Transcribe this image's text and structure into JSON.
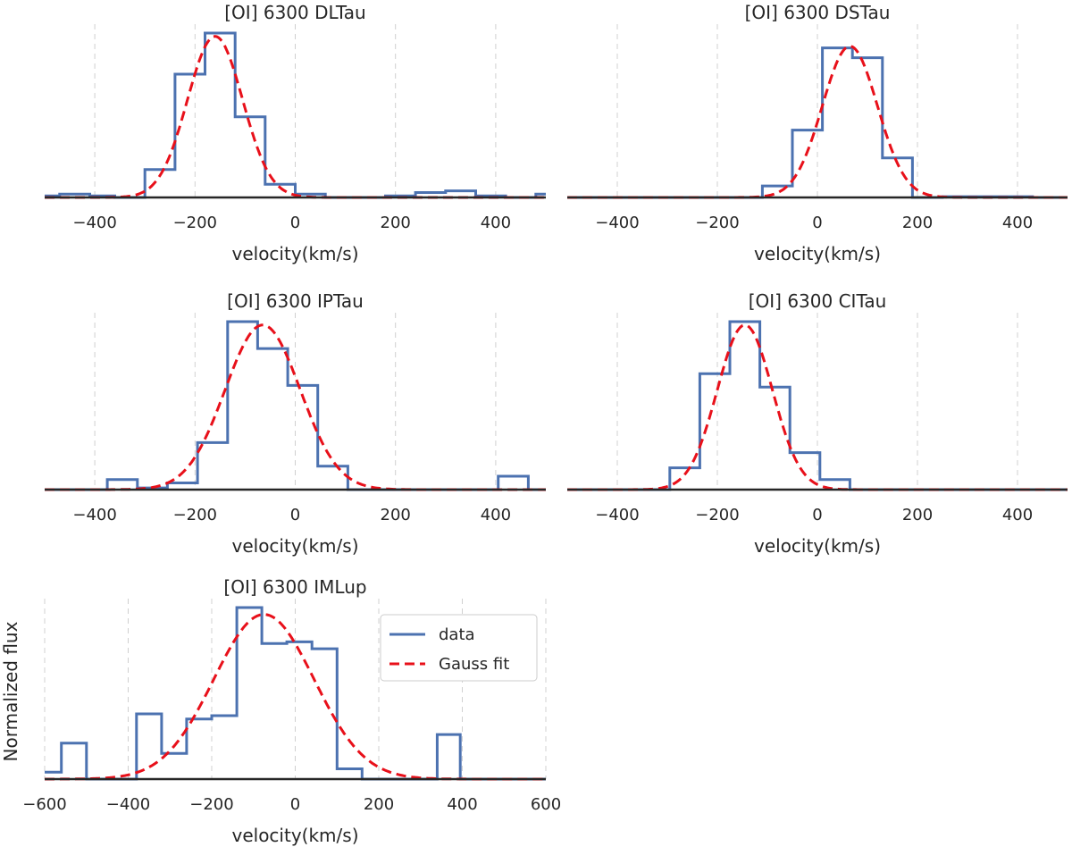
{
  "figure": {
    "ylabel": "Normalized flux",
    "legend": {
      "entries": [
        "data",
        "Gauss fit"
      ],
      "placement": "top-right"
    }
  },
  "colors": {
    "data": "#4C72B0",
    "fit": "#E8101A",
    "axis": "#262626",
    "grid": "#d0d0d0"
  },
  "chart_data": [
    {
      "type": "line",
      "title": "[OI] 6300 DLTau",
      "xlabel": "velocity(km/s)",
      "xlim": [
        -500,
        500
      ],
      "xticks": [
        -400,
        -200,
        0,
        200,
        400
      ],
      "tick_labels": [
        "−400",
        "−200",
        "0",
        "200",
        "400"
      ],
      "ylim": [
        0,
        1
      ],
      "series": [
        {
          "name": "data",
          "style": "step",
          "edges": [
            -500,
            -470,
            -410,
            -360,
            -300,
            -240,
            -180,
            -120,
            -60,
            0,
            60,
            120,
            180,
            240,
            300,
            360,
            420,
            480,
            500
          ],
          "values": [
            0.01,
            0.02,
            0.01,
            0.0,
            0.17,
            0.75,
            1.0,
            0.49,
            0.08,
            0.02,
            0.0,
            0.0,
            0.01,
            0.03,
            0.04,
            0.01,
            0.0,
            0.02
          ]
        },
        {
          "name": "Gauss fit",
          "style": "dashed",
          "amp": 0.98,
          "mu": -160,
          "sigma": 55
        }
      ]
    },
    {
      "type": "line",
      "title": "[OI] 6300 DSTau",
      "xlabel": "velocity(km/s)",
      "xlim": [
        -500,
        500
      ],
      "xticks": [
        -400,
        -200,
        0,
        200,
        400
      ],
      "tick_labels": [
        "−400",
        "−200",
        "0",
        "200",
        "400"
      ],
      "ylim": [
        0,
        1
      ],
      "series": [
        {
          "name": "data",
          "style": "step",
          "edges": [
            -500,
            -110,
            -50,
            10,
            70,
            130,
            190,
            250,
            430,
            500
          ],
          "values": [
            0.0,
            0.07,
            0.41,
            0.91,
            0.85,
            0.24,
            0.0,
            0.005,
            0.0
          ]
        },
        {
          "name": "Gauss fit",
          "style": "dashed",
          "amp": 0.92,
          "mu": 65,
          "sigma": 55
        }
      ]
    },
    {
      "type": "line",
      "title": "[OI] 6300 IPTau",
      "xlabel": "velocity(km/s)",
      "xlim": [
        -500,
        500
      ],
      "xticks": [
        -400,
        -200,
        0,
        200,
        400
      ],
      "tick_labels": [
        "−400",
        "−200",
        "0",
        "200",
        "400"
      ],
      "ylim": [
        0,
        1
      ],
      "series": [
        {
          "name": "data",
          "style": "step",
          "edges": [
            -500,
            -375,
            -315,
            -255,
            -195,
            -135,
            -75,
            -15,
            45,
            105,
            165,
            405,
            465,
            500
          ],
          "values": [
            0.0,
            0.06,
            0.01,
            0.04,
            0.28,
            1.0,
            0.84,
            0.62,
            0.14,
            0.0,
            0.0,
            0.08,
            0.0
          ]
        },
        {
          "name": "Gauss fit",
          "style": "dashed",
          "amp": 0.98,
          "mu": -65,
          "sigma": 75
        }
      ]
    },
    {
      "type": "line",
      "title": "[OI] 6300 CITau",
      "xlabel": "velocity(km/s)",
      "xlim": [
        -500,
        500
      ],
      "xticks": [
        -400,
        -200,
        0,
        200,
        400
      ],
      "tick_labels": [
        "−400",
        "−200",
        "0",
        "200",
        "400"
      ],
      "ylim": [
        0,
        1
      ],
      "series": [
        {
          "name": "data",
          "style": "step",
          "edges": [
            -500,
            -295,
            -235,
            -175,
            -115,
            -55,
            5,
            65,
            500
          ],
          "values": [
            0.0,
            0.13,
            0.69,
            1.0,
            0.61,
            0.22,
            0.06,
            0.0
          ]
        },
        {
          "name": "Gauss fit",
          "style": "dashed",
          "amp": 0.98,
          "mu": -145,
          "sigma": 55
        }
      ]
    },
    {
      "type": "line",
      "title": "[OI] 6300 IMLup",
      "xlabel": "velocity(km/s)",
      "xlim": [
        -600,
        600
      ],
      "xticks": [
        -600,
        -400,
        -200,
        0,
        200,
        400,
        600
      ],
      "tick_labels": [
        "−600",
        "−400",
        "−200",
        "0",
        "200",
        "400",
        "600"
      ],
      "ylim": [
        0,
        1
      ],
      "series": [
        {
          "name": "data",
          "style": "step",
          "edges": [
            -600,
            -560,
            -500,
            -440,
            -380,
            -320,
            -260,
            -200,
            -140,
            -80,
            -20,
            40,
            100,
            160,
            340,
            395,
            600
          ],
          "values": [
            0.04,
            0.21,
            0.0,
            0.0,
            0.38,
            0.15,
            0.35,
            0.37,
            1.0,
            0.79,
            0.8,
            0.76,
            0.06,
            0.0,
            0.26,
            0.0
          ]
        },
        {
          "name": "Gauss fit",
          "style": "dashed",
          "amp": 0.96,
          "mu": -75,
          "sigma": 120
        }
      ]
    }
  ]
}
